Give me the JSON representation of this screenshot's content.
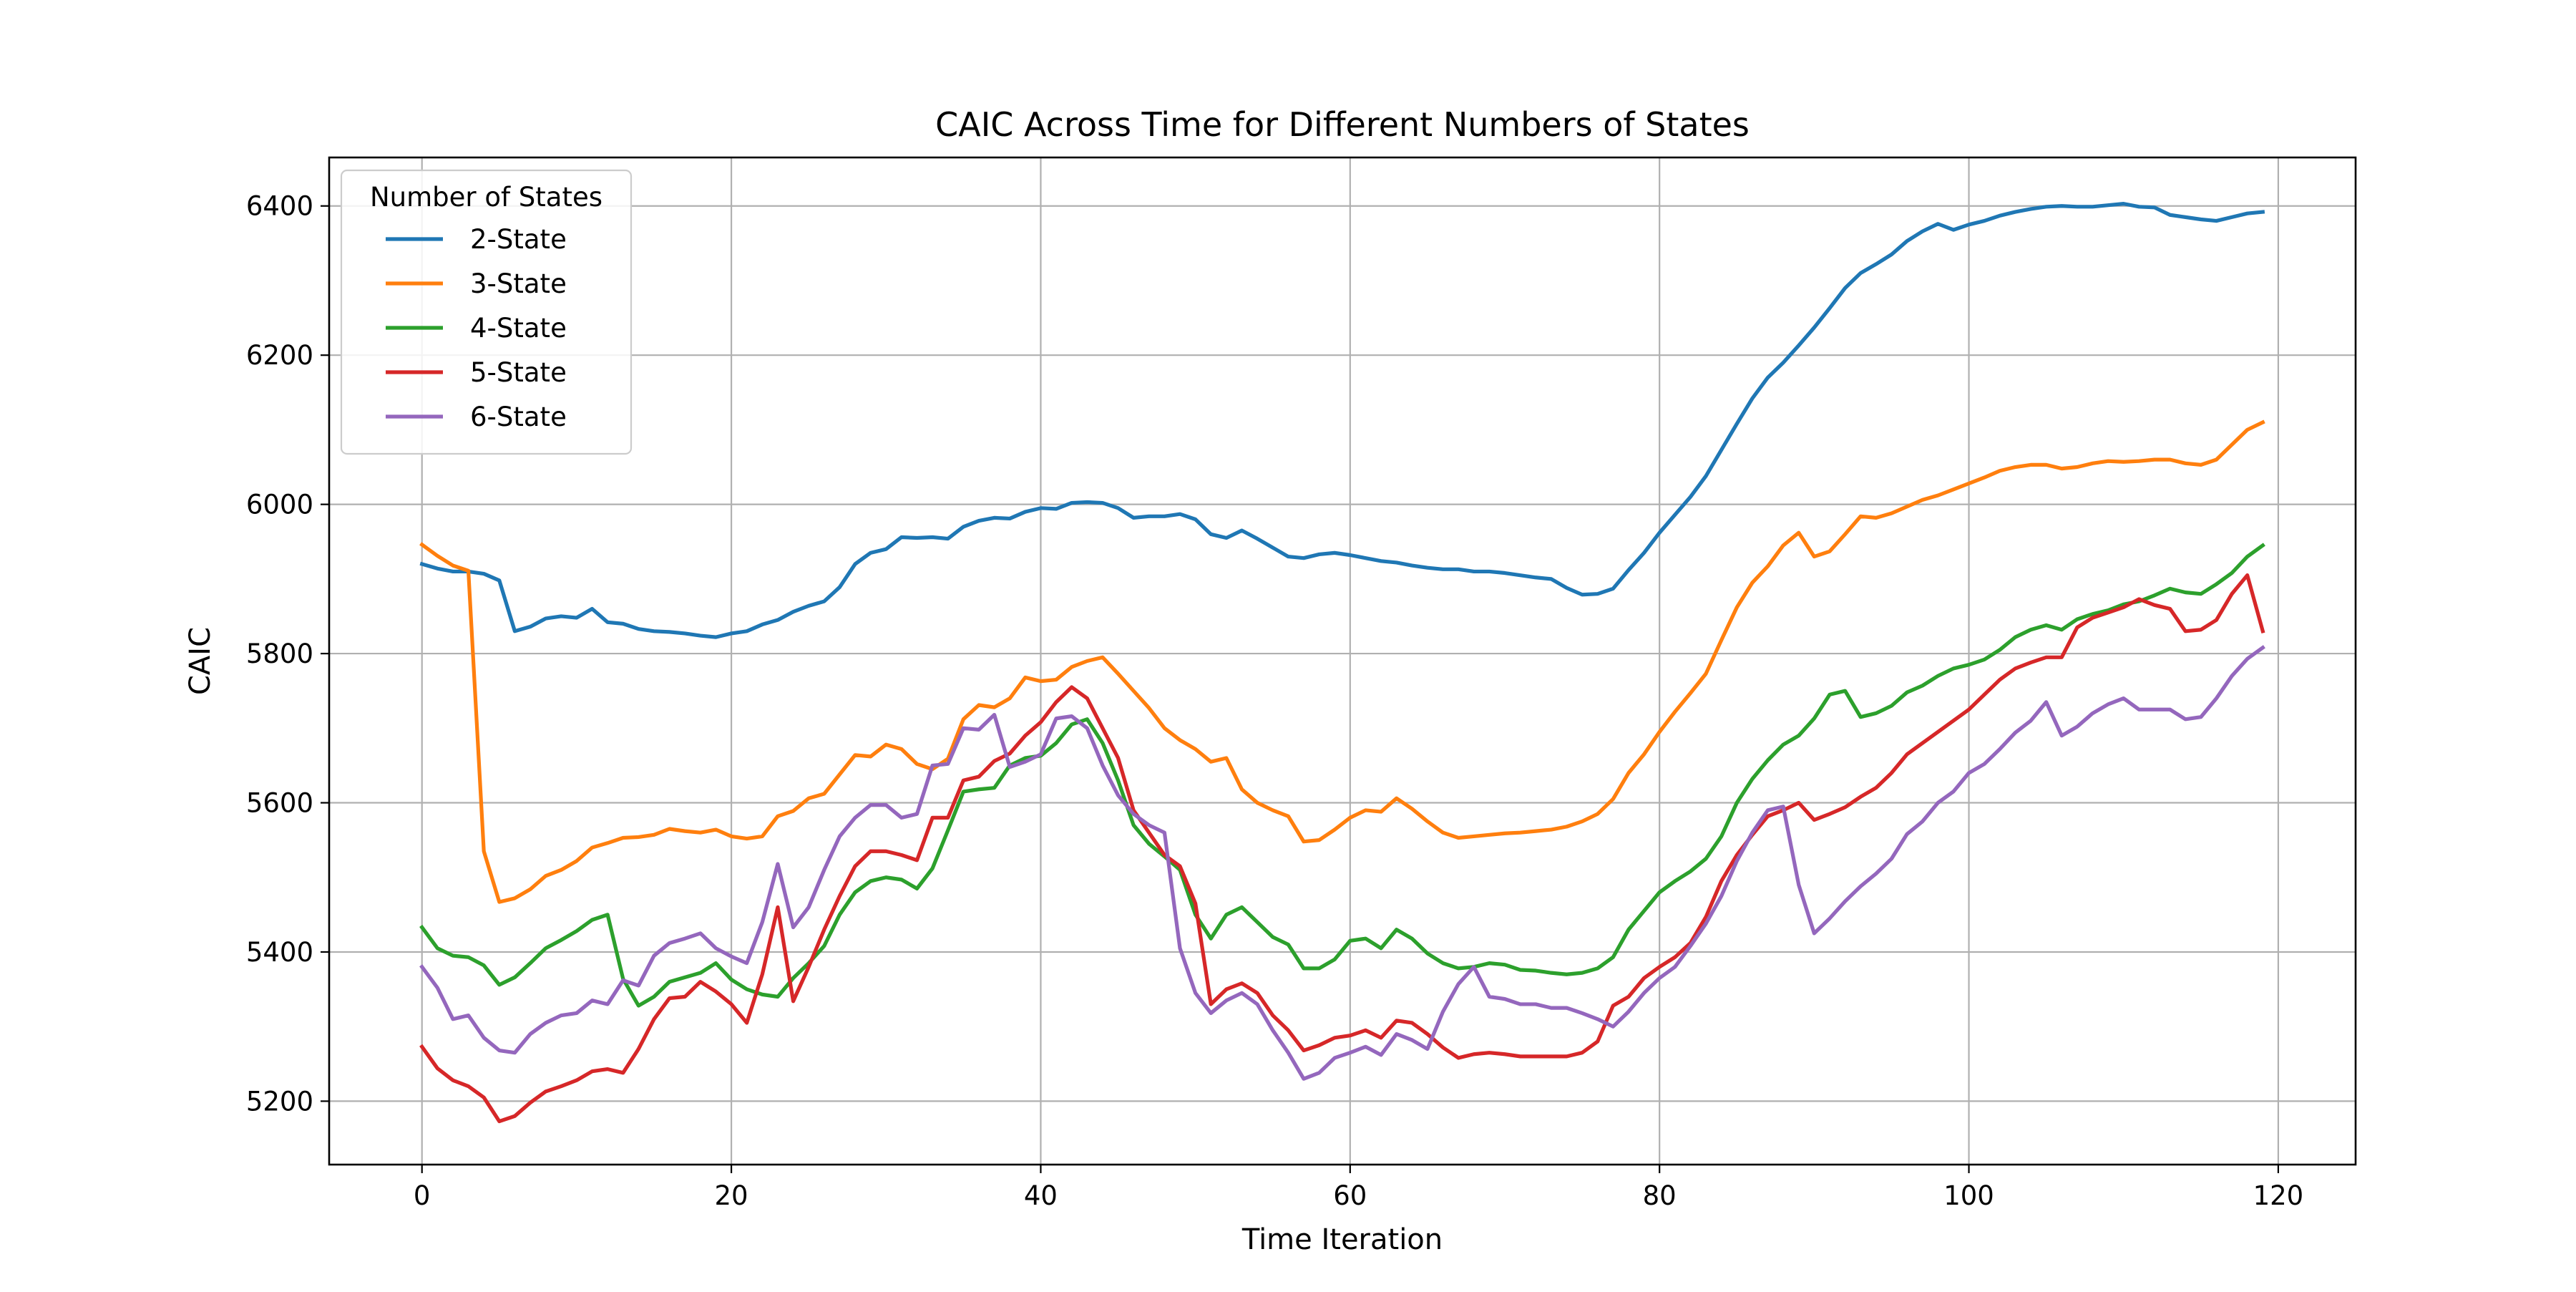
{
  "chart_data": {
    "type": "line",
    "title": "CAIC Across Time for Different Numbers of States",
    "xlabel": "Time Iteration",
    "ylabel": "CAIC",
    "xlim": [
      -6,
      125
    ],
    "ylim": [
      5115,
      6465
    ],
    "xticks": [
      0,
      20,
      40,
      60,
      80,
      100,
      120
    ],
    "yticks": [
      5200,
      5400,
      5600,
      5800,
      6000,
      6200,
      6400
    ],
    "grid": true,
    "legend": {
      "title": "Number of States",
      "position": "upper-left"
    },
    "x": {
      "start": 0,
      "end": 119,
      "step": 1
    },
    "series": [
      {
        "name": "2-State",
        "color": "#1f77b4",
        "values": [
          5920,
          5914,
          5910,
          5910,
          5907,
          5898,
          5830,
          5836,
          5847,
          5850,
          5848,
          5860,
          5842,
          5840,
          5833,
          5830,
          5829,
          5827,
          5824,
          5822,
          5827,
          5830,
          5839,
          5845,
          5856,
          5864,
          5870,
          5889,
          5920,
          5935,
          5940,
          5956,
          5955,
          5956,
          5954,
          5970,
          5978,
          5982,
          5981,
          5990,
          5995,
          5994,
          6002,
          6003,
          6002,
          5995,
          5982,
          5984,
          5984,
          5987,
          5980,
          5960,
          5955,
          5965,
          5954,
          5942,
          5930,
          5928,
          5933,
          5935,
          5932,
          5928,
          5924,
          5922,
          5918,
          5915,
          5913,
          5913,
          5910,
          5910,
          5908,
          5905,
          5902,
          5900,
          5888,
          5879,
          5880,
          5887,
          5912,
          5935,
          5962,
          5986,
          6010,
          6038,
          6073,
          6108,
          6142,
          6170,
          6190,
          6213,
          6237,
          6263,
          6290,
          6310,
          6322,
          6335,
          6353,
          6366,
          6376,
          6368,
          6375,
          6380,
          6387,
          6392,
          6396,
          6399,
          6400,
          6399,
          6399,
          6401,
          6403,
          6399,
          6398,
          6388,
          6385,
          6382,
          6380,
          6385,
          6390,
          6392
        ]
      },
      {
        "name": "3-State",
        "color": "#ff7f0e",
        "values": [
          5946,
          5931,
          5918,
          5911,
          5535,
          5467,
          5472,
          5484,
          5502,
          5510,
          5522,
          5540,
          5546,
          5553,
          5554,
          5557,
          5565,
          5562,
          5560,
          5564,
          5555,
          5552,
          5555,
          5582,
          5589,
          5606,
          5612,
          5638,
          5664,
          5662,
          5678,
          5672,
          5652,
          5645,
          5659,
          5712,
          5731,
          5728,
          5740,
          5768,
          5763,
          5765,
          5782,
          5790,
          5795,
          5773,
          5750,
          5727,
          5700,
          5684,
          5672,
          5655,
          5660,
          5618,
          5600,
          5590,
          5582,
          5548,
          5550,
          5564,
          5580,
          5590,
          5588,
          5606,
          5592,
          5575,
          5560,
          5553,
          5555,
          5557,
          5559,
          5560,
          5562,
          5564,
          5568,
          5575,
          5585,
          5605,
          5640,
          5665,
          5695,
          5722,
          5747,
          5773,
          5818,
          5862,
          5895,
          5917,
          5945,
          5962,
          5930,
          5937,
          5960,
          5984,
          5982,
          5988,
          5997,
          6006,
          6012,
          6020,
          6028,
          6036,
          6045,
          6050,
          6053,
          6053,
          6048,
          6050,
          6055,
          6058,
          6057,
          6058,
          6060,
          6060,
          6055,
          6053,
          6060,
          6080,
          6100,
          6110
        ]
      },
      {
        "name": "4-State",
        "color": "#2ca02c",
        "values": [
          5433,
          5405,
          5395,
          5393,
          5382,
          5356,
          5366,
          5385,
          5405,
          5416,
          5428,
          5443,
          5450,
          5364,
          5328,
          5340,
          5360,
          5366,
          5372,
          5385,
          5363,
          5350,
          5343,
          5340,
          5365,
          5385,
          5408,
          5450,
          5480,
          5495,
          5500,
          5497,
          5485,
          5512,
          5563,
          5615,
          5618,
          5620,
          5650,
          5660,
          5663,
          5680,
          5705,
          5712,
          5680,
          5630,
          5570,
          5545,
          5528,
          5510,
          5450,
          5418,
          5450,
          5460,
          5440,
          5420,
          5410,
          5378,
          5378,
          5390,
          5415,
          5418,
          5405,
          5430,
          5418,
          5398,
          5385,
          5378,
          5380,
          5385,
          5383,
          5376,
          5375,
          5372,
          5370,
          5372,
          5378,
          5393,
          5430,
          5455,
          5480,
          5495,
          5508,
          5525,
          5555,
          5600,
          5632,
          5657,
          5678,
          5690,
          5713,
          5745,
          5750,
          5715,
          5720,
          5730,
          5748,
          5757,
          5770,
          5780,
          5785,
          5792,
          5805,
          5822,
          5832,
          5838,
          5832,
          5846,
          5853,
          5858,
          5866,
          5870,
          5878,
          5887,
          5882,
          5880,
          5893,
          5908,
          5930,
          5945
        ]
      },
      {
        "name": "5-State",
        "color": "#d62728",
        "values": [
          5273,
          5244,
          5228,
          5220,
          5205,
          5173,
          5180,
          5198,
          5213,
          5220,
          5228,
          5240,
          5243,
          5238,
          5270,
          5310,
          5338,
          5340,
          5360,
          5347,
          5330,
          5305,
          5370,
          5460,
          5334,
          5380,
          5430,
          5475,
          5515,
          5535,
          5535,
          5530,
          5523,
          5580,
          5580,
          5630,
          5635,
          5656,
          5666,
          5690,
          5708,
          5735,
          5755,
          5740,
          5700,
          5660,
          5590,
          5560,
          5530,
          5515,
          5465,
          5330,
          5350,
          5358,
          5345,
          5315,
          5295,
          5268,
          5275,
          5285,
          5288,
          5295,
          5285,
          5308,
          5305,
          5290,
          5272,
          5258,
          5263,
          5265,
          5263,
          5260,
          5260,
          5260,
          5260,
          5265,
          5280,
          5328,
          5340,
          5365,
          5380,
          5393,
          5412,
          5447,
          5495,
          5530,
          5557,
          5582,
          5590,
          5600,
          5577,
          5585,
          5594,
          5608,
          5620,
          5640,
          5665,
          5680,
          5695,
          5710,
          5725,
          5745,
          5765,
          5780,
          5788,
          5795,
          5795,
          5835,
          5848,
          5855,
          5862,
          5873,
          5865,
          5860,
          5830,
          5832,
          5845,
          5880,
          5905,
          5830
        ]
      },
      {
        "name": "6-State",
        "color": "#9467bd",
        "values": [
          5380,
          5352,
          5310,
          5315,
          5285,
          5268,
          5265,
          5290,
          5305,
          5315,
          5318,
          5335,
          5330,
          5362,
          5355,
          5395,
          5412,
          5418,
          5425,
          5405,
          5394,
          5385,
          5440,
          5518,
          5433,
          5460,
          5510,
          5555,
          5580,
          5597,
          5597,
          5580,
          5585,
          5650,
          5652,
          5700,
          5698,
          5718,
          5648,
          5655,
          5665,
          5713,
          5716,
          5700,
          5650,
          5610,
          5585,
          5570,
          5560,
          5405,
          5345,
          5318,
          5335,
          5345,
          5330,
          5295,
          5265,
          5230,
          5238,
          5258,
          5265,
          5273,
          5262,
          5290,
          5282,
          5270,
          5320,
          5357,
          5380,
          5340,
          5337,
          5330,
          5330,
          5325,
          5325,
          5318,
          5310,
          5300,
          5320,
          5345,
          5365,
          5380,
          5408,
          5438,
          5475,
          5522,
          5560,
          5590,
          5595,
          5490,
          5425,
          5445,
          5468,
          5488,
          5505,
          5525,
          5558,
          5575,
          5600,
          5615,
          5640,
          5652,
          5672,
          5694,
          5710,
          5735,
          5690,
          5702,
          5720,
          5732,
          5740,
          5725,
          5725,
          5725,
          5712,
          5715,
          5740,
          5770,
          5793,
          5808
        ]
      }
    ]
  }
}
